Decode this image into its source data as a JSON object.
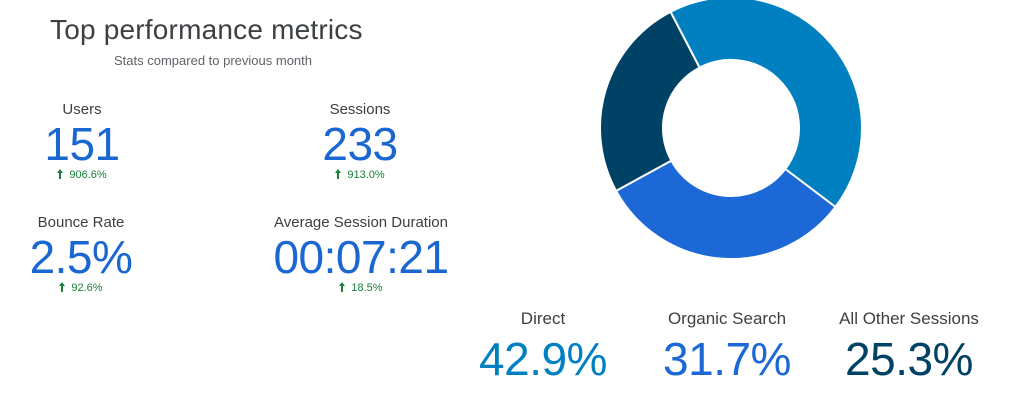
{
  "header": {
    "title": "Top performance metrics",
    "subtitle": "Stats compared to previous month"
  },
  "metrics": [
    {
      "label": "Users",
      "value": "151",
      "delta": "906.6%",
      "direction": "up"
    },
    {
      "label": "Sessions",
      "value": "233",
      "delta": "913.0%",
      "direction": "up"
    },
    {
      "label": "Bounce Rate",
      "value": "2.5%",
      "delta": "92.6%",
      "direction": "up"
    },
    {
      "label": "Average Session Duration",
      "value": "00:07:21",
      "delta": "18.5%",
      "direction": "up"
    }
  ],
  "colors": {
    "metric_value": "#1a67d2",
    "delta_positive": "#188038",
    "direct": "#0180c1",
    "organic_search": "#1c68d6",
    "other_sessions": "#004265"
  },
  "chart_data": {
    "type": "pie",
    "donut": true,
    "categories": [
      "Direct",
      "Organic Search",
      "All Other Sessions"
    ],
    "values": [
      42.9,
      31.7,
      25.3
    ],
    "value_labels": [
      "42.9%",
      "31.7%",
      "25.3%"
    ],
    "colors": [
      "#0180c1",
      "#1c68d6",
      "#004265"
    ],
    "legend_placement": "bottom"
  }
}
